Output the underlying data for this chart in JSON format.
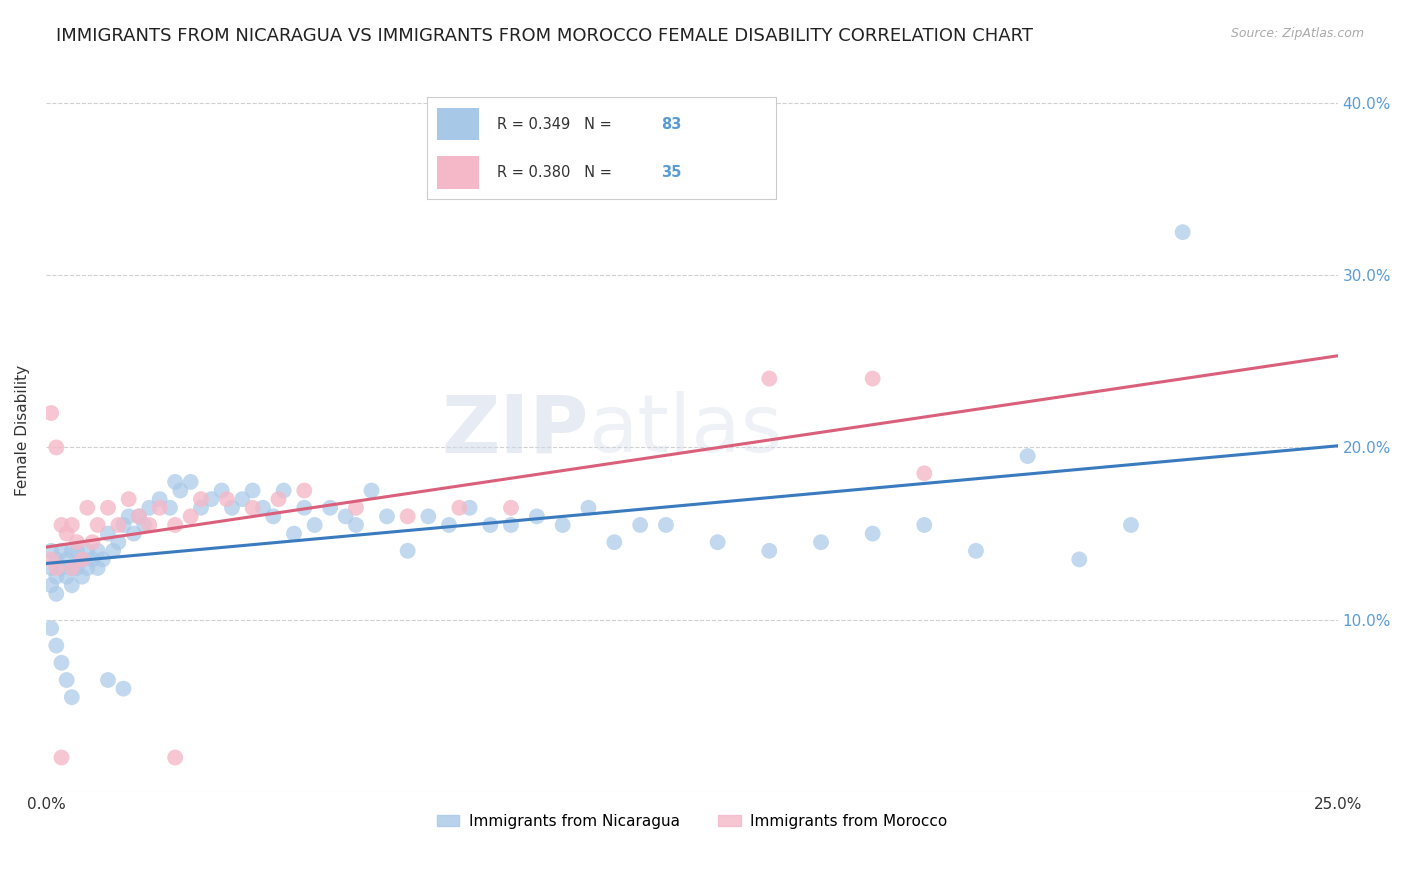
{
  "title": "IMMIGRANTS FROM NICARAGUA VS IMMIGRANTS FROM MOROCCO FEMALE DISABILITY CORRELATION CHART",
  "source": "Source: ZipAtlas.com",
  "ylabel_text": "Female Disability",
  "xlim": [
    0.0,
    0.25
  ],
  "ylim": [
    0.0,
    0.42
  ],
  "nicaragua_color": "#a8c8e8",
  "morocco_color": "#f4b8c8",
  "nicaragua_line_color": "#3a7abf",
  "morocco_line_color": "#d95f7a",
  "nicaragua_R": 0.349,
  "nicaragua_N": 83,
  "morocco_R": 0.38,
  "morocco_N": 35,
  "watermark": "ZIPatlas",
  "background_color": "#ffffff",
  "grid_color": "#d0d0d0",
  "title_fontsize": 13,
  "axis_label_fontsize": 11,
  "tick_fontsize": 11,
  "nic_x": [
    0.001,
    0.001,
    0.001,
    0.002,
    0.002,
    0.002,
    0.003,
    0.003,
    0.004,
    0.004,
    0.005,
    0.005,
    0.005,
    0.006,
    0.006,
    0.007,
    0.007,
    0.008,
    0.008,
    0.009,
    0.01,
    0.01,
    0.011,
    0.012,
    0.013,
    0.014,
    0.015,
    0.016,
    0.017,
    0.018,
    0.019,
    0.02,
    0.022,
    0.024,
    0.025,
    0.026,
    0.028,
    0.03,
    0.032,
    0.034,
    0.036,
    0.038,
    0.04,
    0.042,
    0.044,
    0.046,
    0.048,
    0.05,
    0.052,
    0.055,
    0.058,
    0.06,
    0.063,
    0.066,
    0.07,
    0.074,
    0.078,
    0.082,
    0.086,
    0.09,
    0.095,
    0.1,
    0.105,
    0.11,
    0.115,
    0.12,
    0.13,
    0.14,
    0.15,
    0.16,
    0.17,
    0.18,
    0.19,
    0.2,
    0.21,
    0.001,
    0.002,
    0.003,
    0.004,
    0.005,
    0.012,
    0.015,
    0.22
  ],
  "nic_y": [
    0.13,
    0.14,
    0.12,
    0.135,
    0.125,
    0.115,
    0.14,
    0.13,
    0.135,
    0.125,
    0.14,
    0.13,
    0.12,
    0.13,
    0.14,
    0.135,
    0.125,
    0.14,
    0.13,
    0.135,
    0.14,
    0.13,
    0.135,
    0.15,
    0.14,
    0.145,
    0.155,
    0.16,
    0.15,
    0.16,
    0.155,
    0.165,
    0.17,
    0.165,
    0.18,
    0.175,
    0.18,
    0.165,
    0.17,
    0.175,
    0.165,
    0.17,
    0.175,
    0.165,
    0.16,
    0.175,
    0.15,
    0.165,
    0.155,
    0.165,
    0.16,
    0.155,
    0.175,
    0.16,
    0.14,
    0.16,
    0.155,
    0.165,
    0.155,
    0.155,
    0.16,
    0.155,
    0.165,
    0.145,
    0.155,
    0.155,
    0.145,
    0.14,
    0.145,
    0.15,
    0.155,
    0.14,
    0.195,
    0.135,
    0.155,
    0.095,
    0.085,
    0.075,
    0.065,
    0.055,
    0.065,
    0.06,
    0.325
  ],
  "mor_x": [
    0.001,
    0.001,
    0.002,
    0.002,
    0.003,
    0.004,
    0.005,
    0.005,
    0.006,
    0.007,
    0.008,
    0.009,
    0.01,
    0.012,
    0.014,
    0.016,
    0.018,
    0.02,
    0.022,
    0.025,
    0.028,
    0.03,
    0.035,
    0.04,
    0.045,
    0.05,
    0.06,
    0.07,
    0.08,
    0.09,
    0.14,
    0.16,
    0.17,
    0.003,
    0.025
  ],
  "mor_y": [
    0.135,
    0.22,
    0.2,
    0.13,
    0.155,
    0.15,
    0.155,
    0.13,
    0.145,
    0.135,
    0.165,
    0.145,
    0.155,
    0.165,
    0.155,
    0.17,
    0.16,
    0.155,
    0.165,
    0.155,
    0.16,
    0.17,
    0.17,
    0.165,
    0.17,
    0.175,
    0.165,
    0.16,
    0.165,
    0.165,
    0.24,
    0.24,
    0.185,
    0.02,
    0.02
  ]
}
